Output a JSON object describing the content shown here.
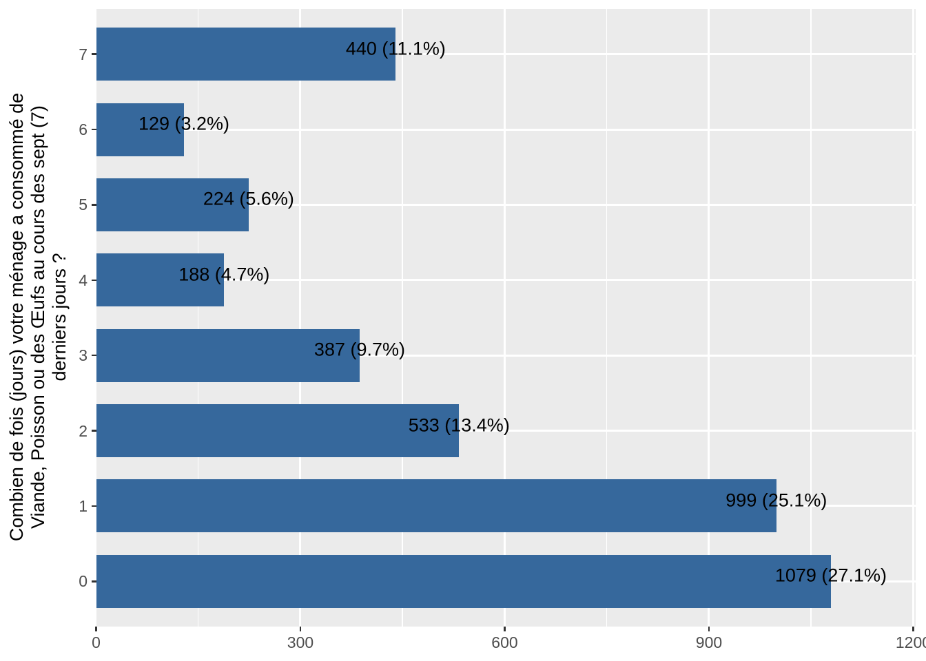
{
  "chart_data": {
    "type": "bar",
    "orientation": "horizontal",
    "title": "",
    "xlabel": "",
    "ylabel_lines": [
      "Combien de fois (jours) votre ménage a consommé de",
      "Viande, Poisson ou des Œufs au cours des sept (7)",
      "derniers jours ?"
    ],
    "categories": [
      "7",
      "6",
      "5",
      "4",
      "3",
      "2",
      "1",
      "0"
    ],
    "values": [
      440,
      129,
      224,
      188,
      387,
      533,
      999,
      1079
    ],
    "percentages": [
      11.1,
      3.2,
      5.6,
      4.7,
      9.7,
      13.4,
      25.1,
      27.1
    ],
    "bar_labels": [
      "440 (11.1%)",
      "129 (3.2%)",
      "224 (5.6%)",
      "188 (4.7%)",
      "387 (9.7%)",
      "533 (13.4%)",
      "999 (25.1%)",
      "1079 (27.1%)"
    ],
    "x_axis": {
      "ticks": [
        0,
        300,
        600,
        900,
        1200
      ],
      "tick_labels": [
        "0",
        "300",
        "600",
        "900",
        "1200"
      ],
      "minor_ticks": [
        150,
        450,
        750,
        1050
      ],
      "range": [
        0,
        1203
      ]
    },
    "legend_position": "none",
    "grid": true,
    "colors": {
      "bar_fill": "#36689C",
      "panel_background": "#EBEBEB",
      "gridline": "#FFFFFF",
      "axis_text": "#4D4D4D",
      "bar_label_text": "#000000",
      "tick_mark": "#333333",
      "figure_background": "#FFFFFF"
    }
  }
}
